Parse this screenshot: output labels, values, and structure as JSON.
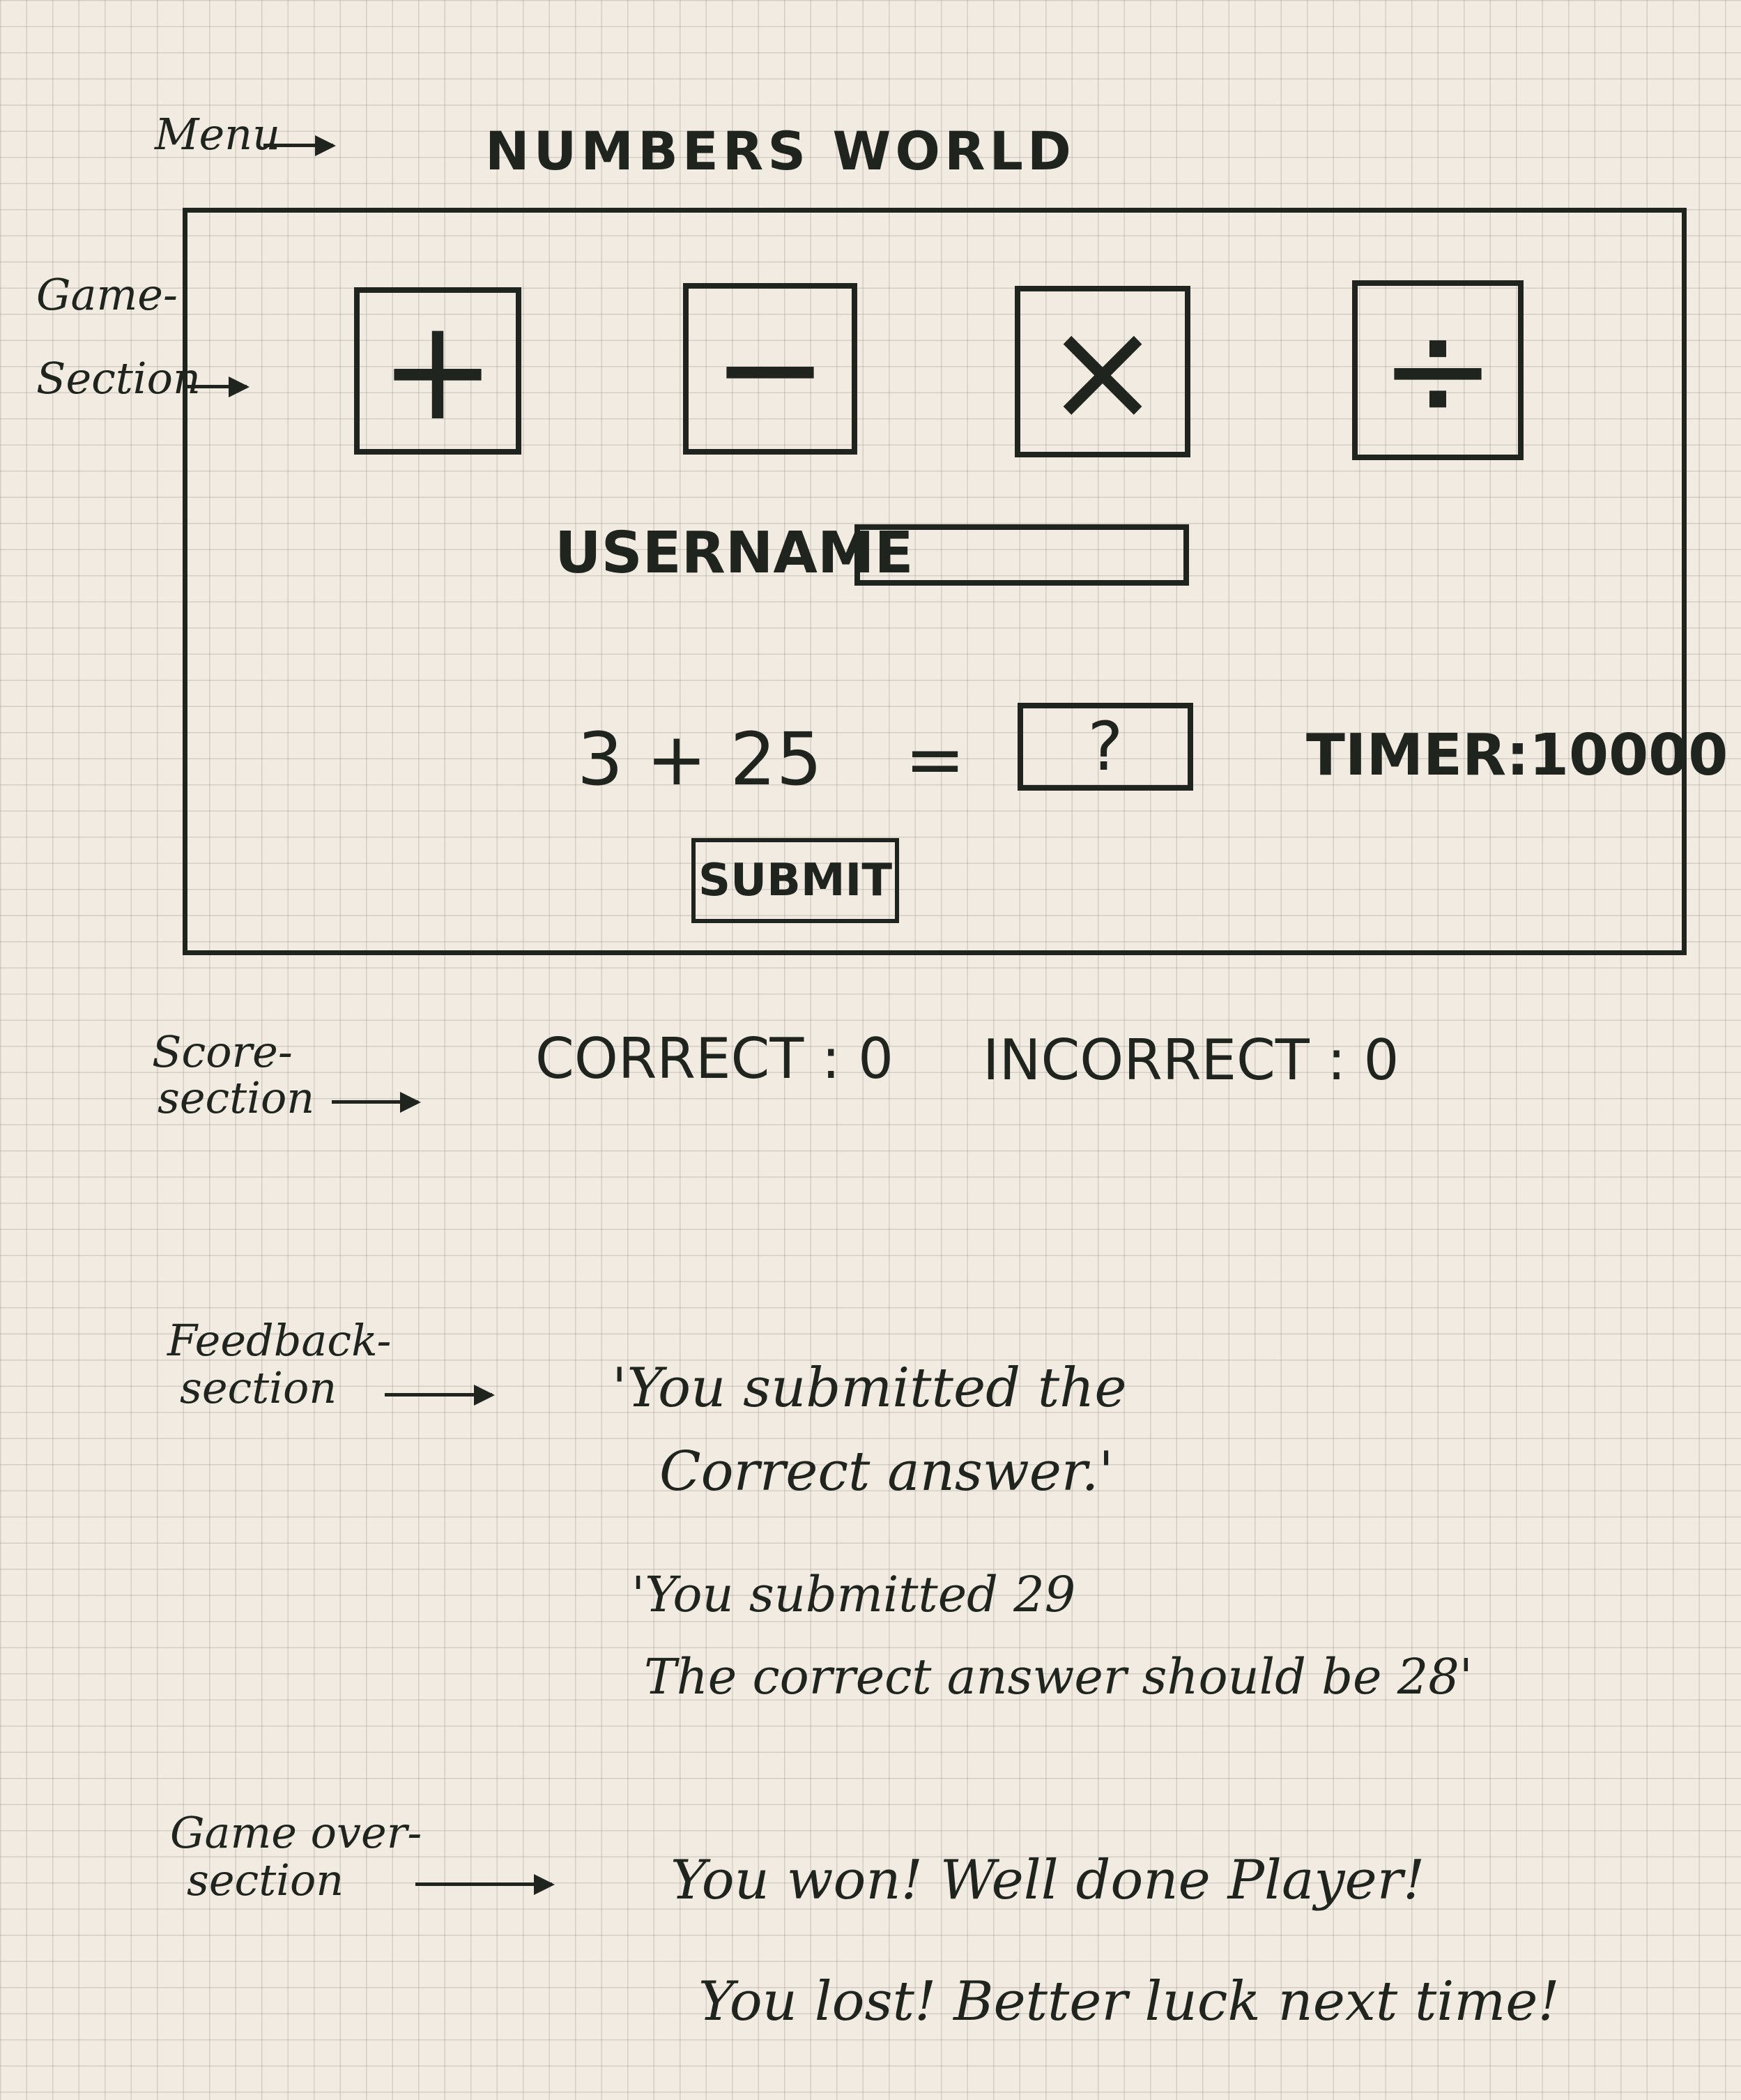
{
  "menu": {
    "label": "Menu",
    "title": "NUMBERS WORLD"
  },
  "game_section": {
    "label_line1": "Game-",
    "label_line2": "Section",
    "operators": [
      {
        "symbol": "+",
        "icon": "plus-icon"
      },
      {
        "symbol": "−",
        "icon": "minus-icon"
      },
      {
        "symbol": "×",
        "icon": "multiply-icon"
      },
      {
        "symbol": "÷",
        "icon": "divide-icon"
      }
    ],
    "username_label": "USERNAME",
    "username_value": "",
    "question": "3 + 25",
    "equals": "=",
    "answer_placeholder": "?",
    "timer_label": "TIMER",
    "timer_value": "10000",
    "submit_label": "SUBMIT"
  },
  "score_section": {
    "label_line1": "Score-",
    "label_line2": "section",
    "correct_label": "CORRECT",
    "correct_value": "0",
    "incorrect_label": "INCORRECT",
    "incorrect_value": "0"
  },
  "feedback_section": {
    "label_line1": "Feedback-",
    "label_line2": "section",
    "message1_line1": "'You submitted the",
    "message1_line2": "Correct answer.'",
    "message2_line1": "'You submitted 29",
    "message2_line2": "The correct answer should be 28'"
  },
  "game_over_section": {
    "label_line1": "Game over-",
    "label_line2": "section",
    "win_message": "You won! Well done Player!",
    "lose_message": "You lost! Better luck next time!"
  }
}
